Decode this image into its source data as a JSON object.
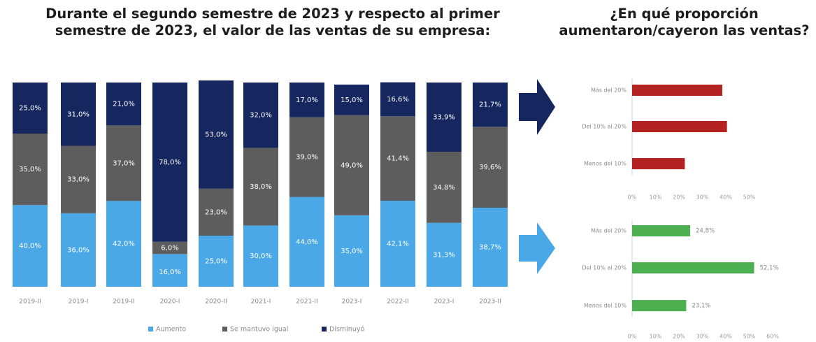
{
  "titles": {
    "left_line1": "Durante el segundo semestre de 2023 y respecto al primer",
    "left_line2": "semestre de 2023, el valor de las ventas de su empresa:",
    "right_line1": "¿En qué proporción",
    "right_line2": "aumentaron/cayeron las ventas?"
  },
  "colors": {
    "aumento": "#4aa8e6",
    "se_mantuvo": "#5d5d5d",
    "disminuyo": "#15275e",
    "cayeron_bars": "#b52222",
    "aumentaron_bars": "#4caf50",
    "arrow_dark": "#15275e",
    "arrow_light": "#4aa8e6"
  },
  "chart_data": [
    {
      "type": "bar",
      "stacked": true,
      "percent_stacked": true,
      "categories": [
        "2019-II",
        "2019-I",
        "2019-II",
        "2020-I",
        "2020-II",
        "2021-I",
        "2021-II",
        "2023-I",
        "2022-II",
        "2023-I",
        "2023-II"
      ],
      "series": [
        {
          "name": "Aumento",
          "values": [
            40.0,
            36.0,
            42.0,
            16.0,
            25.0,
            30.0,
            44.0,
            35.0,
            42.1,
            31.3,
            38.7
          ],
          "labels": [
            "40,0%",
            "36,0%",
            "42,0%",
            "16,0%",
            "25,0%",
            "30,0%",
            "44,0%",
            "35,0%",
            "42,1%",
            "31,3%",
            "38,7%"
          ]
        },
        {
          "name": "Se mantuvo igual",
          "values": [
            35.0,
            33.0,
            37.0,
            6.0,
            23.0,
            38.0,
            39.0,
            49.0,
            41.4,
            34.8,
            39.6
          ],
          "labels": [
            "35,0%",
            "33,0%",
            "37,0%",
            "6,0%",
            "23,0%",
            "38,0%",
            "39,0%",
            "49,0%",
            "41,4%",
            "34,8%",
            "39,6%"
          ]
        },
        {
          "name": "Disminuyó",
          "values": [
            25.0,
            31.0,
            21.0,
            78.0,
            53.0,
            32.0,
            17.0,
            15.0,
            16.6,
            33.9,
            21.7
          ],
          "labels": [
            "25,0%",
            "31,0%",
            "21,0%",
            "78,0%",
            "53,0%",
            "32,0%",
            "17,0%",
            "15,0%",
            "16,6%",
            "33,9%",
            "21,7%"
          ]
        }
      ],
      "legend": [
        "Aumento",
        "Se mantuvo igual",
        "Disminuyó"
      ],
      "legend_placement": "bottom"
    },
    {
      "type": "bar",
      "orientation": "horizontal",
      "categories": [
        "Más del 20%",
        "Del 10% al 20%",
        "Menos del 10%"
      ],
      "values": [
        38.5,
        40.5,
        22.5
      ],
      "xlim": [
        0,
        50
      ],
      "xticks": [
        "0%",
        "10%",
        "20%",
        "30%",
        "40%",
        "50%"
      ]
    },
    {
      "type": "bar",
      "orientation": "horizontal",
      "categories": [
        "Más del 20%",
        "Del 10% al 20%",
        "Menos del 10%"
      ],
      "values": [
        24.8,
        52.1,
        23.1
      ],
      "labels": [
        "24,8%",
        "52,1%",
        "23,1%"
      ],
      "xlim": [
        0,
        60
      ],
      "xticks": [
        "0%",
        "10%",
        "20%",
        "30%",
        "40%",
        "50%",
        "60%"
      ]
    }
  ]
}
